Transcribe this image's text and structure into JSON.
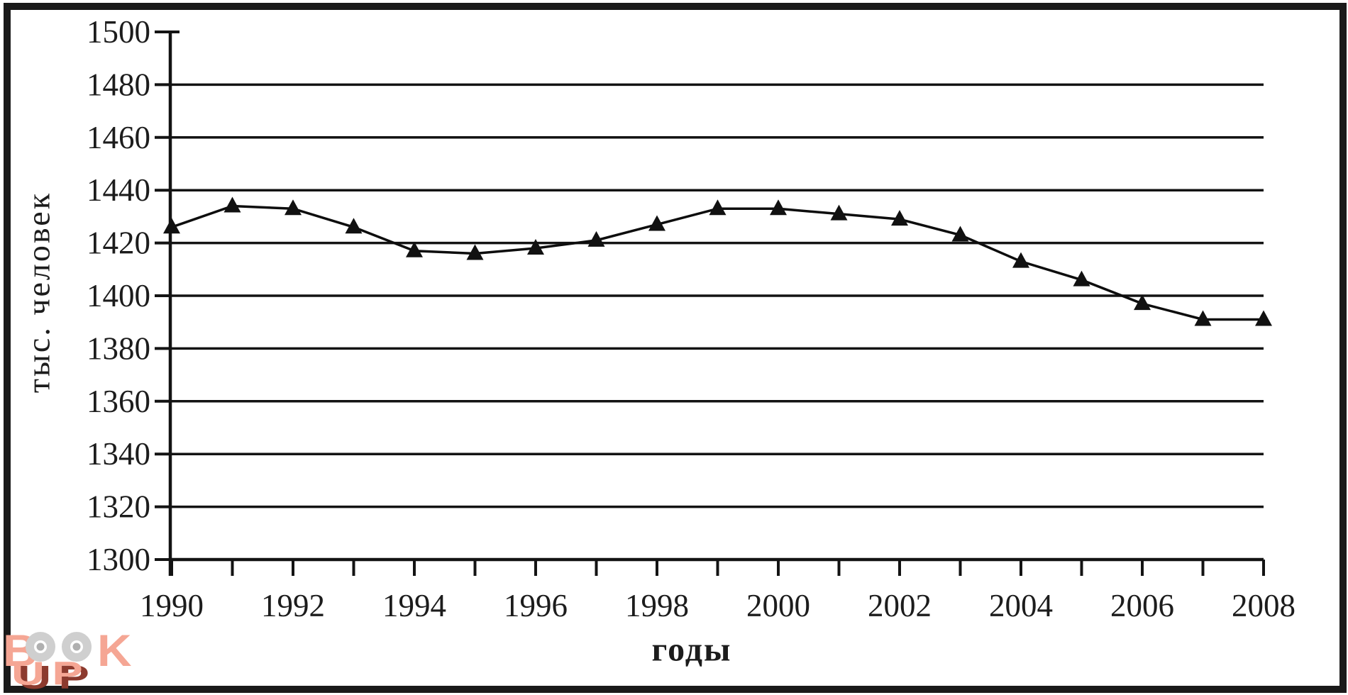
{
  "figure": {
    "background_color": "#ffffff",
    "border_color": "#1a1a1a",
    "text_color": "#1c1c1c"
  },
  "chart_data": {
    "type": "line",
    "title": "",
    "xlabel": "годы",
    "ylabel": "тыс. человек",
    "x": [
      1990,
      1991,
      1992,
      1993,
      1994,
      1995,
      1996,
      1997,
      1998,
      1999,
      2000,
      2001,
      2002,
      2003,
      2004,
      2005,
      2006,
      2007,
      2008
    ],
    "values": [
      1426,
      1434,
      1433,
      1426,
      1417,
      1416,
      1418,
      1421,
      1427,
      1433,
      1433,
      1431,
      1429,
      1423,
      1413,
      1406,
      1397,
      1391,
      1391
    ],
    "ylim": [
      1300,
      1500
    ],
    "ytick_labels": [
      "1300",
      "1320",
      "1340",
      "1360",
      "1380",
      "1400",
      "1420",
      "1440",
      "1460",
      "1480",
      "1500"
    ],
    "xtick_labels": [
      "1990",
      "1992",
      "1994",
      "1996",
      "1998",
      "2000",
      "2002",
      "2004",
      "2006",
      "2008"
    ],
    "grid": "horizontal",
    "legend": "none",
    "marker": "filled-triangle",
    "line_color": "#0d0d0d",
    "marker_color": "#111111"
  },
  "watermark": {
    "word_top": "BOOK",
    "word_bottom": "UP",
    "letter_b": "B",
    "letter_k": "K",
    "color": "#f5a694",
    "shadow_color": "#8c3a2e",
    "ring_color": "#cfcfcf",
    "dot_color": "#b0b0b0"
  }
}
